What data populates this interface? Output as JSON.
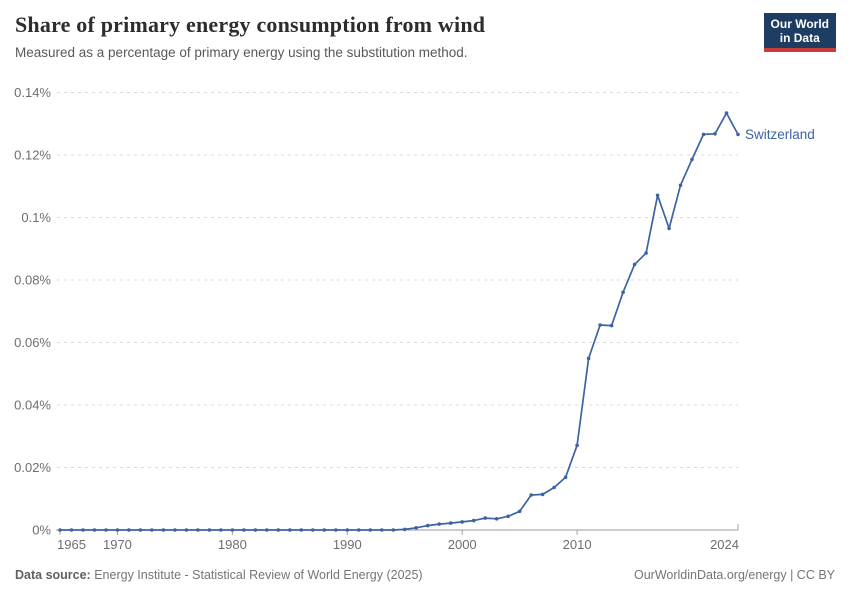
{
  "header": {
    "title": "Share of primary energy consumption from wind",
    "subtitle": "Measured as a percentage of primary energy using the substitution method.",
    "logo": {
      "line1": "Our World",
      "line2": "in Data",
      "bg_color": "#1d3d63",
      "stripe_color": "#c93c3c"
    }
  },
  "chart_data": {
    "type": "line",
    "title": "Share of primary energy consumption from wind",
    "xlabel": "",
    "ylabel": "",
    "xlim": [
      1965,
      2024
    ],
    "ylim": [
      0,
      0.14
    ],
    "grid": "horizontal dashed",
    "legend_position": "end-of-line label",
    "x_ticks": [
      1965,
      1970,
      1980,
      1990,
      2000,
      2010,
      2024
    ],
    "y_ticks": [
      {
        "value": 0.0,
        "label": "0%"
      },
      {
        "value": 0.02,
        "label": "0.02%"
      },
      {
        "value": 0.04,
        "label": "0.04%"
      },
      {
        "value": 0.06,
        "label": "0.06%"
      },
      {
        "value": 0.08,
        "label": "0.08%"
      },
      {
        "value": 0.1,
        "label": "0.1%"
      },
      {
        "value": 0.12,
        "label": "0.12%"
      },
      {
        "value": 0.14,
        "label": "0.14%"
      }
    ],
    "unit_suffix": "%",
    "series": [
      {
        "name": "Switzerland",
        "color": "#3d63a2",
        "x": [
          1965,
          1966,
          1967,
          1968,
          1969,
          1970,
          1971,
          1972,
          1973,
          1974,
          1975,
          1976,
          1977,
          1978,
          1979,
          1980,
          1981,
          1982,
          1983,
          1984,
          1985,
          1986,
          1987,
          1988,
          1989,
          1990,
          1991,
          1992,
          1993,
          1994,
          1995,
          1996,
          1997,
          1998,
          1999,
          2000,
          2001,
          2002,
          2003,
          2004,
          2005,
          2006,
          2007,
          2008,
          2009,
          2010,
          2011,
          2012,
          2013,
          2014,
          2015,
          2016,
          2017,
          2018,
          2019,
          2020,
          2021,
          2022,
          2023,
          2024
        ],
        "values": [
          0,
          0,
          0,
          0,
          0,
          0,
          0,
          0,
          0,
          0,
          0,
          0,
          0,
          0,
          0,
          0,
          0,
          0,
          0,
          0,
          0,
          0,
          0,
          0,
          0,
          0,
          0,
          0,
          0,
          0,
          0.0002,
          0.0007,
          0.0014,
          0.0019,
          0.0022,
          0.0026,
          0.003,
          0.0038,
          0.0036,
          0.0044,
          0.006,
          0.0112,
          0.0114,
          0.0136,
          0.0169,
          0.0271,
          0.0549,
          0.0656,
          0.0654,
          0.0761,
          0.085,
          0.0886,
          0.1071,
          0.0965,
          0.1103,
          0.1186,
          0.1266,
          0.1268,
          0.1334,
          0.1266
        ]
      }
    ]
  },
  "styles": {
    "grid_color": "#dcdcdc",
    "axis_color": "#999999",
    "tick_color": "#a5a5a5",
    "tick_label_color": "#6e6e6e"
  },
  "footer": {
    "source_label": "Data source:",
    "source_text": " Energy Institute - Statistical Review of World Energy (2025)",
    "credit": "OurWorldinData.org/energy | CC BY"
  }
}
